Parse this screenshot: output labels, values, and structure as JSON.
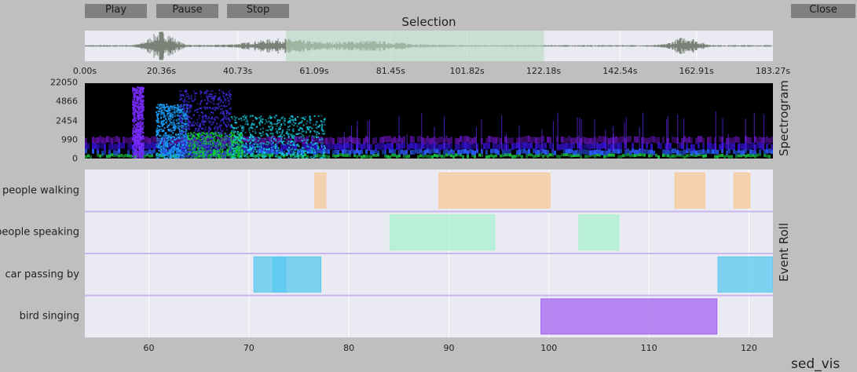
{
  "toolbar": {
    "play_label": "Play",
    "pause_label": "Pause",
    "stop_label": "Stop",
    "close_label": "Close"
  },
  "selection_title": "Selection",
  "waveform": {
    "duration_s": 183.27,
    "tick_labels": [
      "0.00s",
      "20.36s",
      "40.73s",
      "61.09s",
      "81.45s",
      "101.82s",
      "122.18s",
      "142.54s",
      "162.91s",
      "183.27s"
    ],
    "selection_start_s": 53.6,
    "selection_end_s": 122.4,
    "wave_color": "#7a8277",
    "selection_color": "#b4d7be"
  },
  "spectrogram": {
    "label": "Spectrogram",
    "freq_ticks": [
      "22050",
      "4866",
      "2454",
      "990",
      "0"
    ]
  },
  "event_roll": {
    "label": "Event Roll",
    "x_min": 53.6,
    "x_max": 122.4,
    "x_ticks": [
      "60",
      "70",
      "80",
      "90",
      "100",
      "110",
      "120"
    ],
    "rows": [
      {
        "label": "people walking",
        "color": "#f7c898",
        "events": [
          [
            76.6,
            77.7
          ],
          [
            89.0,
            100.1
          ],
          [
            112.6,
            115.6
          ],
          [
            118.5,
            120.1
          ]
        ]
      },
      {
        "label": "people speaking",
        "color": "#aaf2d0",
        "events": [
          [
            84.1,
            94.6
          ],
          [
            103.0,
            107.0
          ]
        ]
      },
      {
        "label": "car passing by",
        "color": "#5ac8f0",
        "events": [
          [
            70.5,
            77.2
          ],
          [
            72.4,
            73.7
          ],
          [
            116.9,
            122.4
          ]
        ]
      },
      {
        "label": "bird singing",
        "color": "#a464f2",
        "events": [
          [
            99.2,
            116.8
          ]
        ]
      }
    ]
  },
  "footer_label": "sed_vis"
}
